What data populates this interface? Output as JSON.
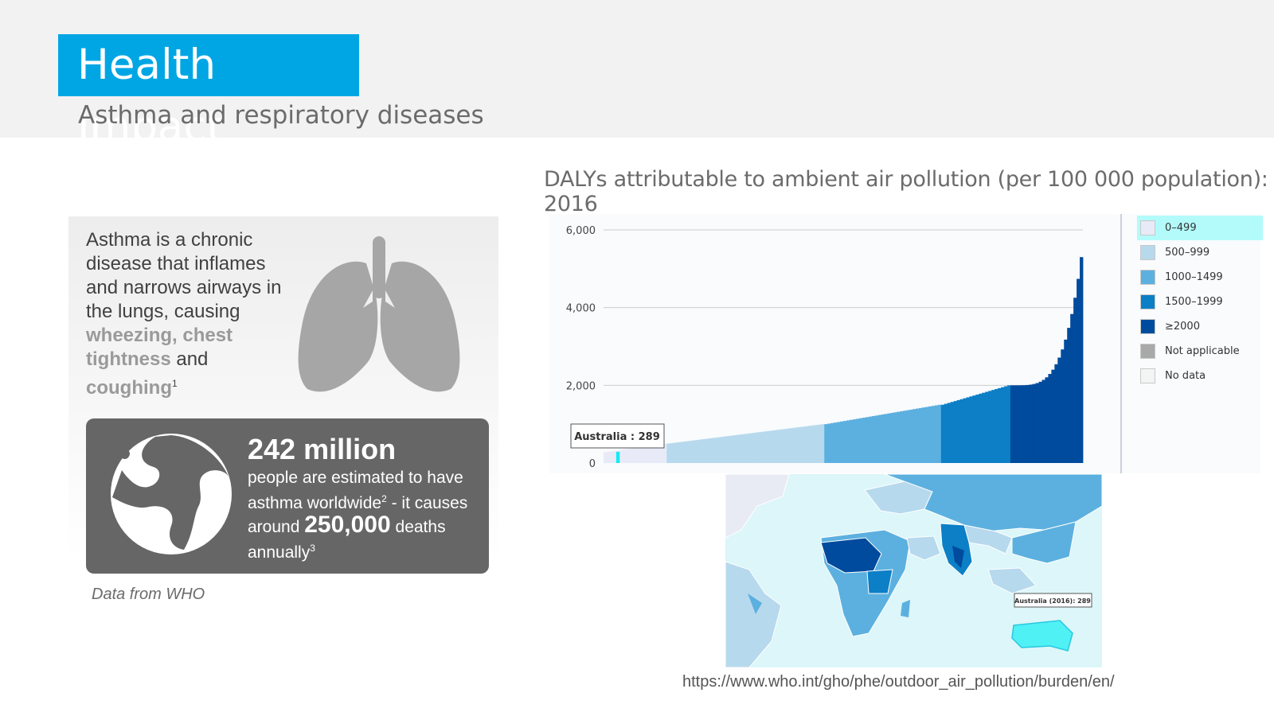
{
  "slide": {
    "title": "Health Impact",
    "subtitle": "Asthma and respiratory diseases"
  },
  "info": {
    "line1": "Asthma is a chronic disease that inflames and narrows airways in the lungs, causing ",
    "highlight1": "wheezing, chest tightness",
    "connector": " and ",
    "highlight2": "coughing",
    "ref1": "1",
    "stat_title": "242 million",
    "stat_text1": "people are estimated to have asthma worldwide",
    "ref2": "2",
    "stat_text2": " - it causes around ",
    "stat_big": "250,000",
    "stat_text3": " deaths annually",
    "ref3": "3",
    "source_note": "Data from WHO"
  },
  "chart_data": {
    "type": "bar",
    "title": "DALYs attributable to ambient air pollution (per 100 000 population):  2016",
    "ylim": [
      0,
      6000
    ],
    "yticks": [
      0,
      2000,
      4000,
      6000
    ],
    "ytick_labels": [
      "0",
      "2,000",
      "4,000",
      "6,000"
    ],
    "grid": true,
    "legend_position": "right",
    "sorted_country_values_by_class": [
      {
        "class": "0–499",
        "min": 280,
        "max": 499
      },
      {
        "class": "500–999",
        "min": 500,
        "max": 999
      },
      {
        "class": "1000–1499",
        "min": 1000,
        "max": 1499
      },
      {
        "class": "1500–1999",
        "min": 1500,
        "max": 1999
      },
      {
        "class": "≥2000",
        "min": 2000,
        "max": 5300
      }
    ],
    "tooltip": {
      "label": "Australia : 289",
      "value": 289
    },
    "legend": [
      {
        "label": "0–499",
        "color": "#e8ebf7"
      },
      {
        "label": "500–999",
        "color": "#b7d9ed"
      },
      {
        "label": "1000–1499",
        "color": "#5cb0df"
      },
      {
        "label": "1500–1999",
        "color": "#0c7fc6"
      },
      {
        "label": "≥2000",
        "color": "#004b9d"
      },
      {
        "label": "Not applicable",
        "color": "#a9a9a9"
      },
      {
        "label": "No data",
        "color": "#f4f4f4"
      }
    ]
  },
  "map": {
    "tooltip": "Australia (2016): 289"
  },
  "source_url": "https://www.who.int/gho/phe/outdoor_air_pollution/burden/en/"
}
